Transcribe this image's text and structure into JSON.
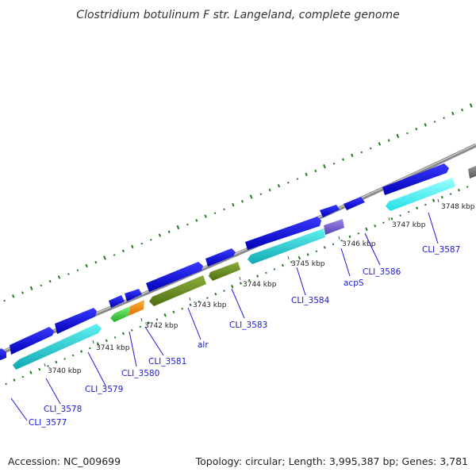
{
  "title": "Clostridium botulinum F str. Langeland, complete genome",
  "footer": {
    "accession": "Accession: NC_009699",
    "topology": "Topology: circular; Length: 3,995,387 bp; Genes: 3,781"
  },
  "colors": {
    "backbone": "#8c8c8c",
    "backbone_highlight": "#c8c8c8",
    "skew_tick": "#237a1f",
    "gene_blue": "#0d0dd8",
    "gene_cyan": "#1fd2d2",
    "gene_cyan_dark": "#1aa9b0",
    "gene_olive": "#6b8e23",
    "gene_green": "#3ccf3c",
    "gene_orange": "#ff8c00",
    "gene_purple": "#7a60cf",
    "gene_gray": "#6e6e6e",
    "label_blue": "#1a1ad6"
  },
  "scale": {
    "unit": "kbp",
    "ticks": [
      "3740 kbp",
      "3741 kbp",
      "3742 kbp",
      "3743 kbp",
      "3744 kbp",
      "3745 kbp",
      "3746 kbp",
      "3747 kbp",
      "3748 kbp"
    ]
  },
  "gene_labels": [
    "CLI_3577",
    "CLI_3578",
    "CLI_3579",
    "CLI_3580",
    "CLI_3581",
    "alr",
    "CLI_3583",
    "CLI_3584",
    "acpS",
    "CLI_3586",
    "CLI_3587"
  ]
}
